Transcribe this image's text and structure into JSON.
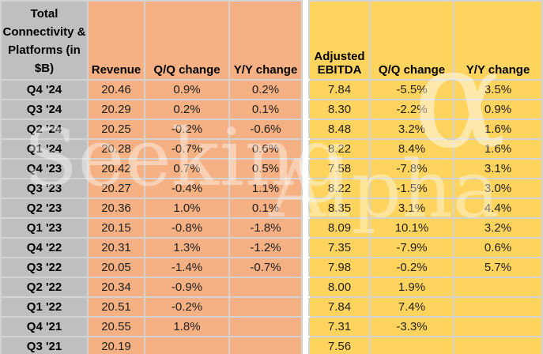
{
  "chart_data": {
    "type": "table",
    "title": "Total Connectivity & Platforms (in $B)",
    "columns": [
      "Revenue",
      "Q/Q change",
      "Y/Y change",
      "Adjusted EBITDA",
      "Q/Q change",
      "Y/Y change"
    ],
    "rows": [
      {
        "quarter": "Q4 '24",
        "cells": [
          "20.46",
          "0.9%",
          "0.2%",
          "7.84",
          "-5.5%",
          "3.5%"
        ]
      },
      {
        "quarter": "Q3 '24",
        "cells": [
          "20.29",
          "0.2%",
          "0.1%",
          "8.30",
          "-2.2%",
          "0.9%"
        ]
      },
      {
        "quarter": "Q2 '24",
        "cells": [
          "20.25",
          "-0.2%",
          "-0.6%",
          "8.48",
          "3.2%",
          "1.6%"
        ]
      },
      {
        "quarter": "Q1 '24",
        "cells": [
          "20.28",
          "-0.7%",
          "0.6%",
          "8.22",
          "8.4%",
          "1.6%"
        ]
      },
      {
        "quarter": "Q4 '23",
        "cells": [
          "20.42",
          "0.7%",
          "0.5%",
          "7.58",
          "-7.8%",
          "3.1%"
        ]
      },
      {
        "quarter": "Q3 '23",
        "cells": [
          "20.27",
          "-0.4%",
          "1.1%",
          "8.22",
          "-1.5%",
          "3.0%"
        ]
      },
      {
        "quarter": "Q2 '23",
        "cells": [
          "20.36",
          "1.0%",
          "0.1%",
          "8.35",
          "3.1%",
          "4.4%"
        ]
      },
      {
        "quarter": "Q1 '23",
        "cells": [
          "20.15",
          "-0.8%",
          "-1.8%",
          "8.09",
          "10.1%",
          "3.2%"
        ]
      },
      {
        "quarter": "Q4 '22",
        "cells": [
          "20.31",
          "1.3%",
          "-1.2%",
          "7.35",
          "-7.9%",
          "0.6%"
        ]
      },
      {
        "quarter": "Q3 '22",
        "cells": [
          "20.05",
          "-1.4%",
          "-0.7%",
          "7.98",
          "-0.2%",
          "5.7%"
        ]
      },
      {
        "quarter": "Q2 '22",
        "cells": [
          "20.34",
          "-0.9%",
          "",
          "8.00",
          "1.9%",
          ""
        ]
      },
      {
        "quarter": "Q1 '22",
        "cells": [
          "20.51",
          "-0.2%",
          "",
          "7.84",
          "7.4%",
          ""
        ]
      },
      {
        "quarter": "Q4 '21",
        "cells": [
          "20.55",
          "1.8%",
          "",
          "7.31",
          "-3.3%",
          ""
        ]
      },
      {
        "quarter": "Q3 '21",
        "cells": [
          "20.19",
          "",
          "",
          "7.56",
          "",
          ""
        ]
      }
    ]
  },
  "watermark": {
    "text_left": "Seeking",
    "text_right": "Alpha",
    "symbol": "α"
  },
  "colors": {
    "rev": "#F5B183",
    "ebi": "#FFD45E",
    "label": "#BFBFBF",
    "grid": "#D3D3D3",
    "text": "#1F1F1F",
    "wm": "#FFFFFF"
  }
}
